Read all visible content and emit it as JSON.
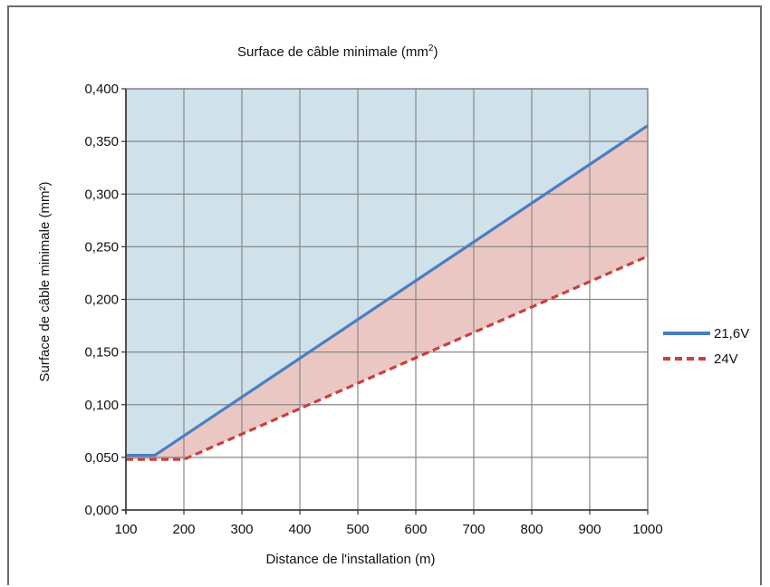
{
  "chart_data": {
    "type": "line",
    "title": "Surface de câble minimale (mm",
    "title_sup": "2",
    "title_end": ")",
    "xlabel": "Distance de l'installation  (m)",
    "ylabel": "Surface de câble minimale (mm²)",
    "x_ticks": [
      "100",
      "200",
      "300",
      "400",
      "500",
      "600",
      "700",
      "800",
      "900",
      "1000"
    ],
    "y_ticks": [
      "0,000",
      "0,050",
      "0,100",
      "0,150",
      "0,200",
      "0,250",
      "0,300",
      "0,350",
      "0,400"
    ],
    "xlim": [
      100,
      1000
    ],
    "ylim": [
      0,
      0.4
    ],
    "grid": true,
    "legend_position": "right",
    "series": [
      {
        "name": "21,6V",
        "style": "solid",
        "color": "#4a7fc1",
        "x": [
          100,
          150,
          1000
        ],
        "y": [
          0.052,
          0.052,
          0.365
        ]
      },
      {
        "name": "24V",
        "style": "dashed",
        "color": "#c9403f",
        "x": [
          100,
          200,
          1000
        ],
        "y": [
          0.048,
          0.048,
          0.241
        ]
      }
    ],
    "fills": {
      "upper_region_color": "#cfe1ea",
      "between_region_color": "#ebc7c3"
    }
  }
}
